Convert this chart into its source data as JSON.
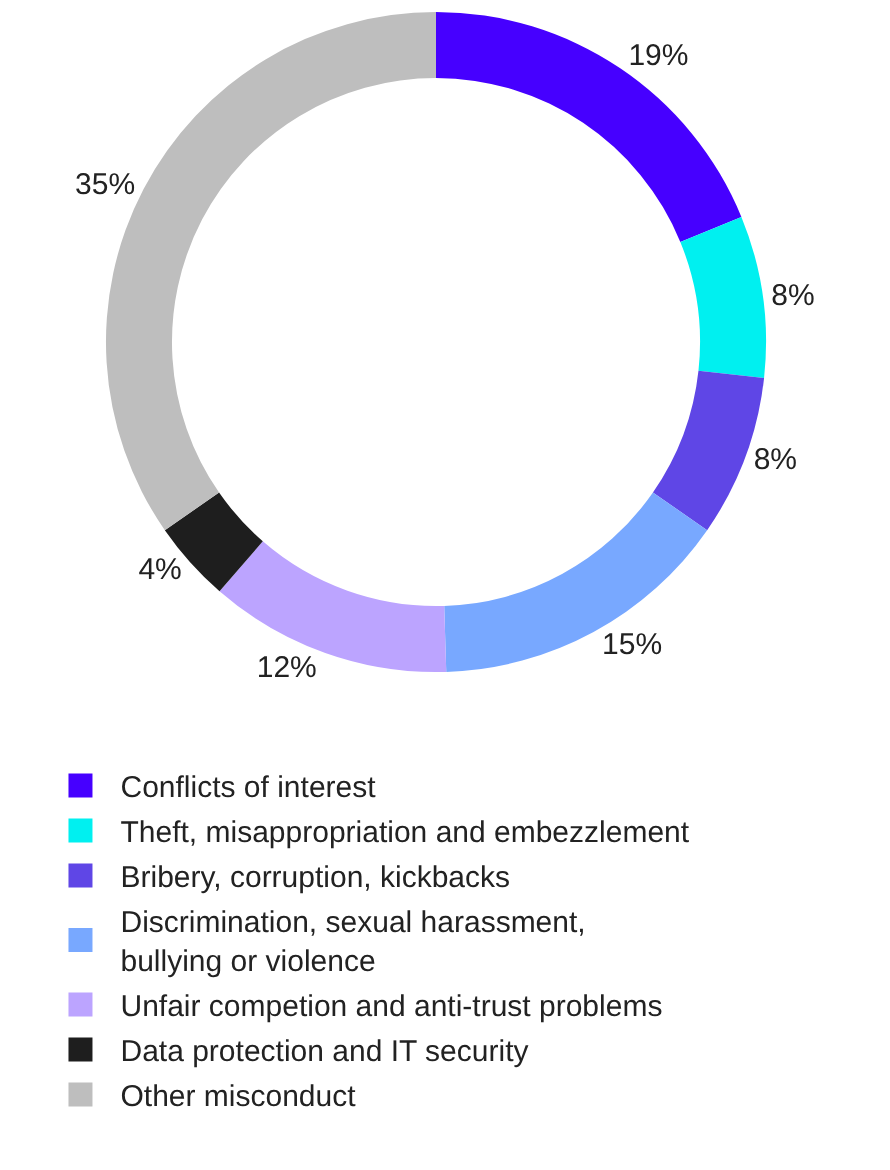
{
  "chart_data": {
    "type": "donut",
    "categories": [
      "Conflicts of interest",
      "Theft, misappropriation and embezzlement",
      "Bribery, corruption, kickbacks",
      "Discrimination, sexual harassment, bullying or violence",
      "Unfair competion and anti-trust problems",
      "Data protection and IT security",
      "Other misconduct"
    ],
    "values": [
      19,
      8,
      8,
      15,
      12,
      4,
      35
    ],
    "value_labels": [
      "19%",
      "8%",
      "8%",
      "15%",
      "12%",
      "4%",
      "35%"
    ],
    "colors": [
      "#4600ff",
      "#00f0f0",
      "#5f46e6",
      "#78a8ff",
      "#bca4ff",
      "#1e1e1e",
      "#bebebe"
    ],
    "legend": "bottom"
  }
}
